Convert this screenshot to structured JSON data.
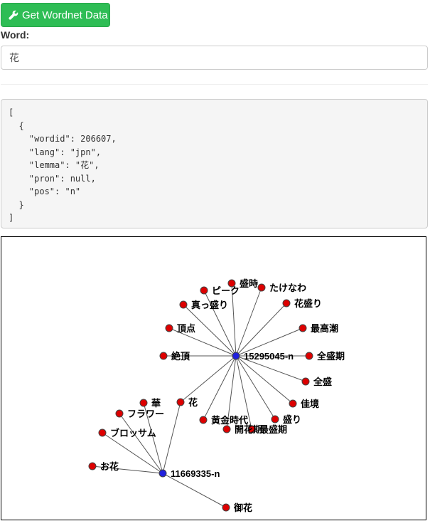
{
  "toolbar": {
    "button_label": "Get Wordnet Data",
    "button_icon": "wrench-icon",
    "button_color": "#2ebd55"
  },
  "form": {
    "word_label": "Word:",
    "word_value": "花"
  },
  "result_json": "[\n  {\n    \"wordid\": 206607,\n    \"lang\": \"jpn\",\n    \"lemma\": \"花\",\n    \"pron\": null,\n    \"pos\": \"n\"\n  }\n]",
  "graph": {
    "hub_color": "#2020dd",
    "leaf_color": "#dd0000",
    "hubs": [
      {
        "id": "h1",
        "label": "15295045-n"
      },
      {
        "id": "h2",
        "label": "11669335-n"
      }
    ],
    "leaves": [
      {
        "id": "l1",
        "label": "盛時",
        "hub": "h1"
      },
      {
        "id": "l2",
        "label": "ピーク",
        "hub": "h1"
      },
      {
        "id": "l3",
        "label": "たけなわ",
        "hub": "h1"
      },
      {
        "id": "l4",
        "label": "真っ盛り",
        "hub": "h1"
      },
      {
        "id": "l5",
        "label": "花盛り",
        "hub": "h1"
      },
      {
        "id": "l6",
        "label": "頂点",
        "hub": "h1"
      },
      {
        "id": "l7",
        "label": "最高潮",
        "hub": "h1"
      },
      {
        "id": "l8",
        "label": "絶頂",
        "hub": "h1"
      },
      {
        "id": "l9",
        "label": "全盛期",
        "hub": "h1"
      },
      {
        "id": "l10",
        "label": "全盛",
        "hub": "h1"
      },
      {
        "id": "l11",
        "label": "佳境",
        "hub": "h1"
      },
      {
        "id": "l12",
        "label": "盛り",
        "hub": "h1"
      },
      {
        "id": "l13",
        "label": "黄金時代",
        "hub": "h1"
      },
      {
        "id": "l14",
        "label": "開花期",
        "hub": "h1"
      },
      {
        "id": "l15",
        "label": "最盛期",
        "hub": "h1"
      },
      {
        "id": "l16",
        "label": "花",
        "hub": "both"
      },
      {
        "id": "l17",
        "label": "華",
        "hub": "h2"
      },
      {
        "id": "l18",
        "label": "フラワー",
        "hub": "h2"
      },
      {
        "id": "l19",
        "label": "ブロッサム",
        "hub": "h2"
      },
      {
        "id": "l20",
        "label": "お花",
        "hub": "h2"
      },
      {
        "id": "l21",
        "label": "御花",
        "hub": "h2"
      }
    ]
  }
}
